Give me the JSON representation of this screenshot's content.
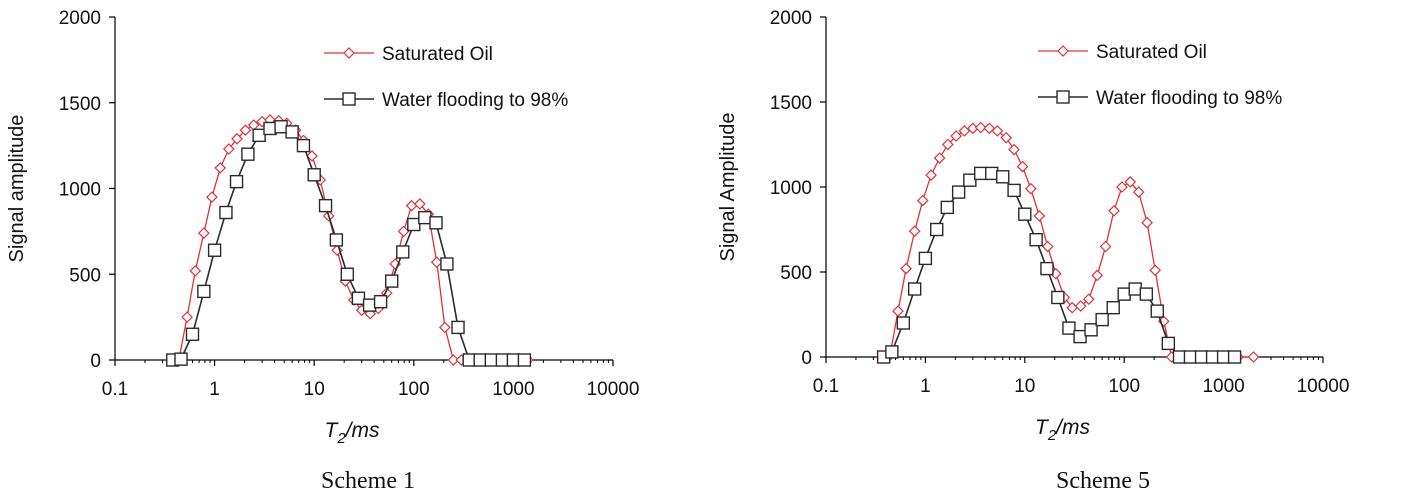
{
  "colors": {
    "saturated": "#e0303a",
    "water": "#2a2a2a",
    "axis": "#000000"
  },
  "chart_data": [
    {
      "type": "line",
      "caption": "Scheme 1",
      "xlabel_main": "T",
      "xlabel_sub": "2",
      "xlabel_rest": "/ms",
      "ylabel": "Signal amplitude",
      "xscale": "log",
      "xlim": [
        0.1,
        10000
      ],
      "ylim": [
        0,
        2000
      ],
      "xticks": [
        0.1,
        1,
        10,
        100,
        1000,
        10000
      ],
      "xtick_labels": [
        "0.1",
        "1",
        "10",
        "100",
        "1000",
        "10000"
      ],
      "yticks": [
        0,
        500,
        1000,
        1500,
        2000
      ],
      "ytick_labels": [
        "0",
        "500",
        "1000",
        "1500",
        "2000"
      ],
      "legend_position": "top-right",
      "series": [
        {
          "name": "Saturated Oil",
          "marker": "diamond",
          "x": [
            0.36,
            0.44,
            0.53,
            0.64,
            0.78,
            0.94,
            1.14,
            1.39,
            1.68,
            2.04,
            2.47,
            3.0,
            3.6,
            4.4,
            5.3,
            6.5,
            7.8,
            9.5,
            11.5,
            14,
            17,
            20.5,
            25,
            30,
            36.5,
            44,
            53.5,
            65,
            79,
            95,
            115,
            140,
            170,
            205,
            250,
            300,
            370,
            450,
            540,
            650,
            790,
            960,
            1160,
            1400
          ],
          "y": [
            0,
            10,
            250,
            520,
            740,
            950,
            1120,
            1230,
            1290,
            1340,
            1370,
            1390,
            1400,
            1395,
            1380,
            1340,
            1280,
            1190,
            1050,
            840,
            640,
            460,
            350,
            290,
            270,
            300,
            390,
            560,
            750,
            900,
            910,
            850,
            570,
            190,
            0,
            0,
            0,
            0,
            0,
            0,
            0,
            0,
            0,
            0
          ]
        },
        {
          "name": "Water flooding to 98%",
          "marker": "square",
          "x": [
            0.38,
            0.46,
            0.6,
            0.78,
            1.0,
            1.3,
            1.66,
            2.16,
            2.8,
            3.6,
            4.65,
            6.0,
            7.8,
            10.0,
            13.0,
            16.7,
            21.5,
            27.8,
            36,
            46.4,
            60,
            77.5,
            100,
            129,
            167,
            215,
            278,
            360,
            464,
            600,
            775,
            1000,
            1290
          ],
          "y": [
            0,
            5,
            150,
            400,
            640,
            860,
            1040,
            1200,
            1310,
            1350,
            1360,
            1330,
            1250,
            1080,
            900,
            700,
            500,
            360,
            320,
            340,
            460,
            630,
            790,
            830,
            800,
            560,
            190,
            0,
            0,
            0,
            0,
            0,
            0
          ]
        }
      ]
    },
    {
      "type": "line",
      "caption": "Scheme 5",
      "xlabel_main": "T",
      "xlabel_sub": "2",
      "xlabel_rest": "/ms",
      "ylabel": "Signal Amplitude",
      "xscale": "log",
      "xlim": [
        0.1,
        10000
      ],
      "ylim": [
        0,
        2000
      ],
      "xticks": [
        0.1,
        1,
        10,
        100,
        1000,
        10000
      ],
      "xtick_labels": [
        "0.1",
        "1",
        "10",
        "100",
        "1000",
        "10000"
      ],
      "yticks": [
        0,
        500,
        1000,
        1500,
        2000
      ],
      "ytick_labels": [
        "0",
        "500",
        "1000",
        "1500",
        "2000"
      ],
      "legend_position": "top-right",
      "series": [
        {
          "name": "Saturated Oil",
          "marker": "diamond",
          "x": [
            0.36,
            0.44,
            0.53,
            0.64,
            0.78,
            0.94,
            1.14,
            1.39,
            1.68,
            2.04,
            2.47,
            3.0,
            3.6,
            4.4,
            5.3,
            6.5,
            7.8,
            9.5,
            11.5,
            14,
            17,
            20.5,
            25,
            30,
            36.5,
            44,
            53.5,
            65,
            79,
            95,
            115,
            140,
            170,
            205,
            250,
            300,
            370,
            450,
            540,
            650,
            790,
            960,
            1160,
            1400,
            2000
          ],
          "y": [
            0,
            10,
            270,
            520,
            740,
            920,
            1070,
            1170,
            1250,
            1300,
            1330,
            1345,
            1350,
            1345,
            1330,
            1290,
            1220,
            1120,
            990,
            830,
            650,
            490,
            350,
            290,
            300,
            340,
            480,
            650,
            860,
            1000,
            1030,
            970,
            790,
            510,
            210,
            0,
            0,
            0,
            0,
            0,
            0,
            0,
            0,
            0,
            0
          ]
        },
        {
          "name": "Water flooding to 98%",
          "marker": "square",
          "x": [
            0.38,
            0.46,
            0.6,
            0.78,
            1.0,
            1.3,
            1.66,
            2.16,
            2.8,
            3.6,
            4.65,
            6.0,
            7.8,
            10.0,
            13.0,
            16.7,
            21.5,
            27.8,
            36,
            46.4,
            60,
            77.5,
            100,
            129,
            167,
            215,
            278,
            360,
            464,
            600,
            775,
            1000,
            1290
          ],
          "y": [
            0,
            30,
            200,
            400,
            580,
            750,
            880,
            970,
            1040,
            1080,
            1080,
            1060,
            980,
            840,
            690,
            520,
            350,
            170,
            120,
            160,
            220,
            290,
            370,
            400,
            370,
            270,
            80,
            0,
            0,
            0,
            0,
            0,
            0
          ]
        }
      ]
    }
  ]
}
